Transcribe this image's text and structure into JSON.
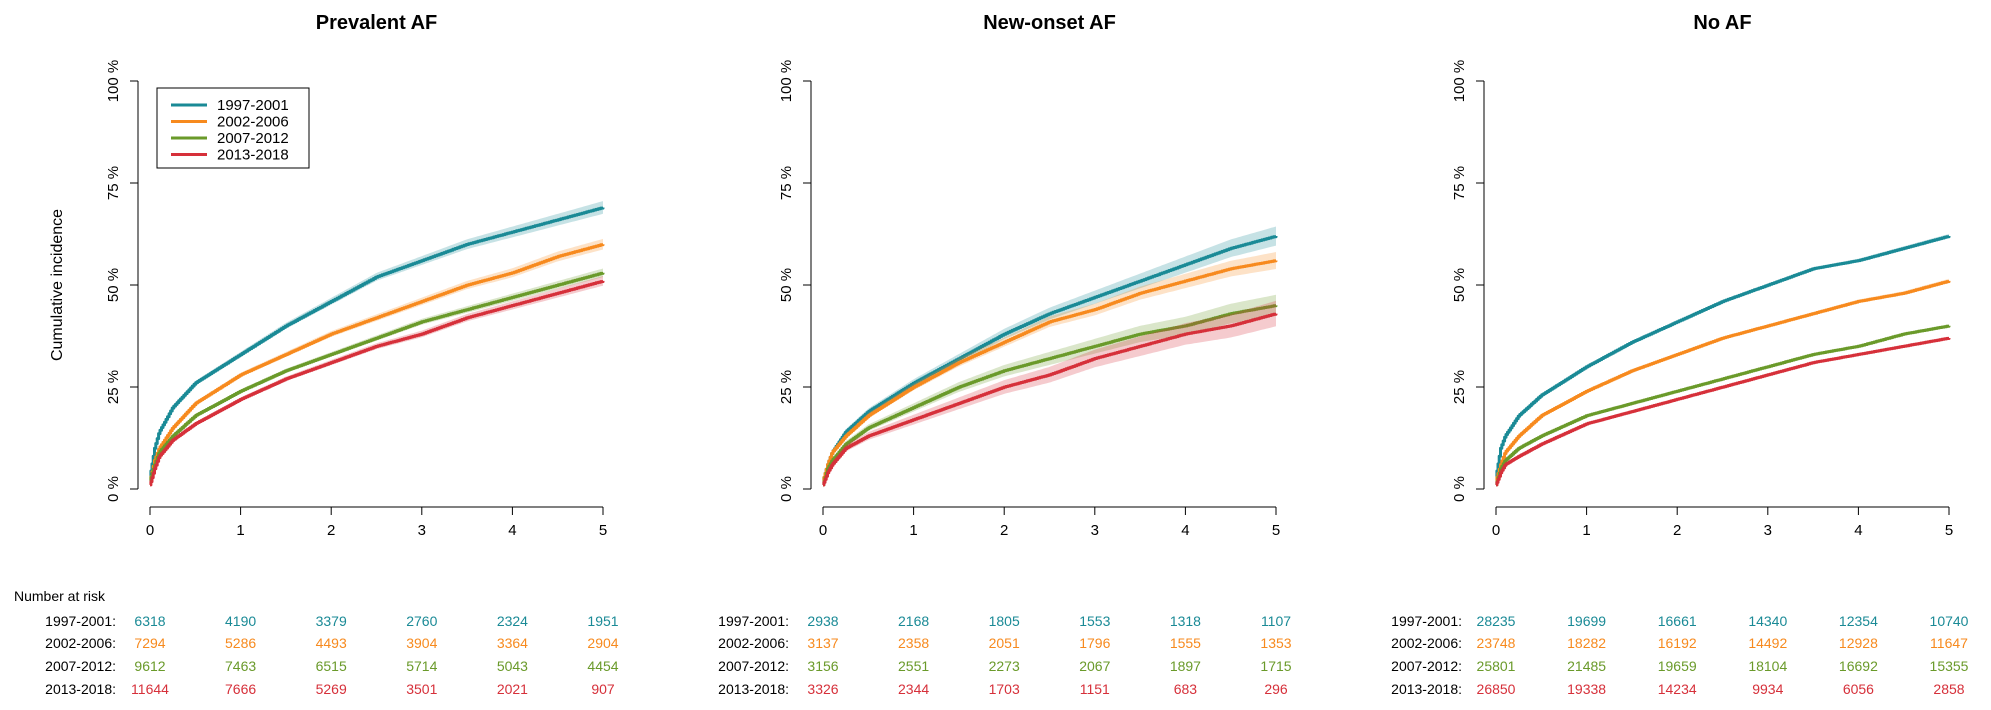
{
  "colors": {
    "1997-2001": "#1a8a96",
    "2002-2006": "#f78a1e",
    "2007-2012": "#6a9a2a",
    "2013-2018": "#d6303a"
  },
  "risk_table_label": "Number at risk",
  "y_axis_label": "Cumulative incidence",
  "chart_data": [
    {
      "type": "line",
      "title": "Prevalent AF",
      "xlabel": "",
      "ylabel": "Cumulative incidence",
      "xlim": [
        0,
        5
      ],
      "ylim": [
        0,
        100
      ],
      "x_ticks": [
        "0",
        "1",
        "2",
        "3",
        "4",
        "5"
      ],
      "y_ticks": [
        "0 %",
        "25 %",
        "50 %",
        "75 %",
        "100 %"
      ],
      "legend": {
        "position": "top-left",
        "entries": [
          "1997-2001",
          "2002-2006",
          "2007-2012",
          "2013-2018"
        ]
      },
      "series": [
        {
          "name": "1997-2001",
          "x": [
            0,
            0.05,
            0.1,
            0.25,
            0.5,
            1,
            1.5,
            2,
            2.5,
            3,
            3.5,
            4,
            4.5,
            5
          ],
          "y": [
            3,
            10,
            14,
            20,
            26,
            33,
            40,
            46,
            52,
            56,
            60,
            63,
            66,
            69
          ],
          "ci": 1.2
        },
        {
          "name": "2002-2006",
          "x": [
            0,
            0.05,
            0.1,
            0.25,
            0.5,
            1,
            1.5,
            2,
            2.5,
            3,
            3.5,
            4,
            4.5,
            5
          ],
          "y": [
            2,
            7,
            10,
            15,
            21,
            28,
            33,
            38,
            42,
            46,
            50,
            53,
            57,
            60
          ],
          "ci": 1.0
        },
        {
          "name": "2007-2012",
          "x": [
            0,
            0.05,
            0.1,
            0.25,
            0.5,
            1,
            1.5,
            2,
            2.5,
            3,
            3.5,
            4,
            4.5,
            5
          ],
          "y": [
            2,
            6,
            9,
            13,
            18,
            24,
            29,
            33,
            37,
            41,
            44,
            47,
            50,
            53
          ],
          "ci": 0.8
        },
        {
          "name": "2013-2018",
          "x": [
            0,
            0.05,
            0.1,
            0.25,
            0.5,
            1,
            1.5,
            2,
            2.5,
            3,
            3.5,
            4,
            4.5,
            5
          ],
          "y": [
            1,
            5,
            8,
            12,
            16,
            22,
            27,
            31,
            35,
            38,
            42,
            45,
            48,
            51
          ],
          "ci": 0.9
        }
      ],
      "risk_table": {
        "rows": [
          {
            "label": "1997-2001:",
            "values": [
              "6318",
              "4190",
              "3379",
              "2760",
              "2324",
              "1951"
            ]
          },
          {
            "label": "2002-2006:",
            "values": [
              "7294",
              "5286",
              "4493",
              "3904",
              "3364",
              "2904"
            ]
          },
          {
            "label": "2007-2012:",
            "values": [
              "9612",
              "7463",
              "6515",
              "5714",
              "5043",
              "4454"
            ]
          },
          {
            "label": "2013-2018:",
            "values": [
              "11644",
              "7666",
              "5269",
              "3501",
              "2021",
              "907"
            ]
          }
        ]
      }
    },
    {
      "type": "line",
      "title": "New-onset AF",
      "xlabel": "",
      "ylabel": "",
      "xlim": [
        0,
        5
      ],
      "ylim": [
        0,
        100
      ],
      "x_ticks": [
        "0",
        "1",
        "2",
        "3",
        "4",
        "5"
      ],
      "y_ticks": [
        "0 %",
        "25 %",
        "50 %",
        "75 %",
        "100 %"
      ],
      "series": [
        {
          "name": "1997-2001",
          "x": [
            0,
            0.05,
            0.1,
            0.25,
            0.5,
            1,
            1.5,
            2,
            2.5,
            3,
            3.5,
            4,
            4.5,
            5
          ],
          "y": [
            2,
            6,
            9,
            14,
            19,
            26,
            32,
            38,
            43,
            47,
            51,
            55,
            59,
            62
          ],
          "ci": 1.8
        },
        {
          "name": "2002-2006",
          "x": [
            0,
            0.05,
            0.1,
            0.25,
            0.5,
            1,
            1.5,
            2,
            2.5,
            3,
            3.5,
            4,
            4.5,
            5
          ],
          "y": [
            2,
            6,
            9,
            13,
            18,
            25,
            31,
            36,
            41,
            44,
            48,
            51,
            54,
            56
          ],
          "ci": 1.6
        },
        {
          "name": "2007-2012",
          "x": [
            0,
            0.05,
            0.1,
            0.25,
            0.5,
            1,
            1.5,
            2,
            2.5,
            3,
            3.5,
            4,
            4.5,
            5
          ],
          "y": [
            1,
            5,
            7,
            11,
            15,
            20,
            25,
            29,
            32,
            35,
            38,
            40,
            43,
            45
          ],
          "ci": 2.0
        },
        {
          "name": "2013-2018",
          "x": [
            0,
            0.05,
            0.1,
            0.25,
            0.5,
            1,
            1.5,
            2,
            2.5,
            3,
            3.5,
            4,
            4.5,
            5
          ],
          "y": [
            1,
            4,
            6,
            10,
            13,
            17,
            21,
            25,
            28,
            32,
            35,
            38,
            40,
            43
          ],
          "ci": 2.4
        }
      ],
      "risk_table": {
        "rows": [
          {
            "label": "1997-2001:",
            "values": [
              "2938",
              "2168",
              "1805",
              "1553",
              "1318",
              "1107"
            ]
          },
          {
            "label": "2002-2006:",
            "values": [
              "3137",
              "2358",
              "2051",
              "1796",
              "1555",
              "1353"
            ]
          },
          {
            "label": "2007-2012:",
            "values": [
              "3156",
              "2551",
              "2273",
              "2067",
              "1897",
              "1715"
            ]
          },
          {
            "label": "2013-2018:",
            "values": [
              "3326",
              "2344",
              "1703",
              "1151",
              "683",
              "296"
            ]
          }
        ]
      }
    },
    {
      "type": "line",
      "title": "No AF",
      "xlabel": "",
      "ylabel": "",
      "xlim": [
        0,
        5
      ],
      "ylim": [
        0,
        100
      ],
      "x_ticks": [
        "0",
        "1",
        "2",
        "3",
        "4",
        "5"
      ],
      "y_ticks": [
        "0 %",
        "25 %",
        "50 %",
        "75 %",
        "100 %"
      ],
      "series": [
        {
          "name": "1997-2001",
          "x": [
            0,
            0.05,
            0.1,
            0.25,
            0.5,
            1,
            1.5,
            2,
            2.5,
            3,
            3.5,
            4,
            4.5,
            5
          ],
          "y": [
            3,
            10,
            13,
            18,
            23,
            30,
            36,
            41,
            46,
            50,
            54,
            56,
            59,
            62
          ],
          "ci": 0.4
        },
        {
          "name": "2002-2006",
          "x": [
            0,
            0.05,
            0.1,
            0.25,
            0.5,
            1,
            1.5,
            2,
            2.5,
            3,
            3.5,
            4,
            4.5,
            5
          ],
          "y": [
            2,
            6,
            9,
            13,
            18,
            24,
            29,
            33,
            37,
            40,
            43,
            46,
            48,
            51
          ],
          "ci": 0.4
        },
        {
          "name": "2007-2012",
          "x": [
            0,
            0.05,
            0.1,
            0.25,
            0.5,
            1,
            1.5,
            2,
            2.5,
            3,
            3.5,
            4,
            4.5,
            5
          ],
          "y": [
            1,
            5,
            7,
            10,
            13,
            18,
            21,
            24,
            27,
            30,
            33,
            35,
            38,
            40
          ],
          "ci": 0.3
        },
        {
          "name": "2013-2018",
          "x": [
            0,
            0.05,
            0.1,
            0.25,
            0.5,
            1,
            1.5,
            2,
            2.5,
            3,
            3.5,
            4,
            4.5,
            5
          ],
          "y": [
            1,
            4,
            6,
            8,
            11,
            16,
            19,
            22,
            25,
            28,
            31,
            33,
            35,
            37
          ],
          "ci": 0.3
        }
      ],
      "risk_table": {
        "rows": [
          {
            "label": "1997-2001:",
            "values": [
              "28235",
              "19699",
              "16661",
              "14340",
              "12354",
              "10740"
            ]
          },
          {
            "label": "2002-2006:",
            "values": [
              "23748",
              "18282",
              "16192",
              "14492",
              "12928",
              "11647"
            ]
          },
          {
            "label": "2007-2012:",
            "values": [
              "25801",
              "21485",
              "19659",
              "18104",
              "16692",
              "15355"
            ]
          },
          {
            "label": "2013-2018:",
            "values": [
              "26850",
              "19338",
              "14234",
              "9934",
              "6056",
              "2858"
            ]
          }
        ]
      }
    }
  ]
}
